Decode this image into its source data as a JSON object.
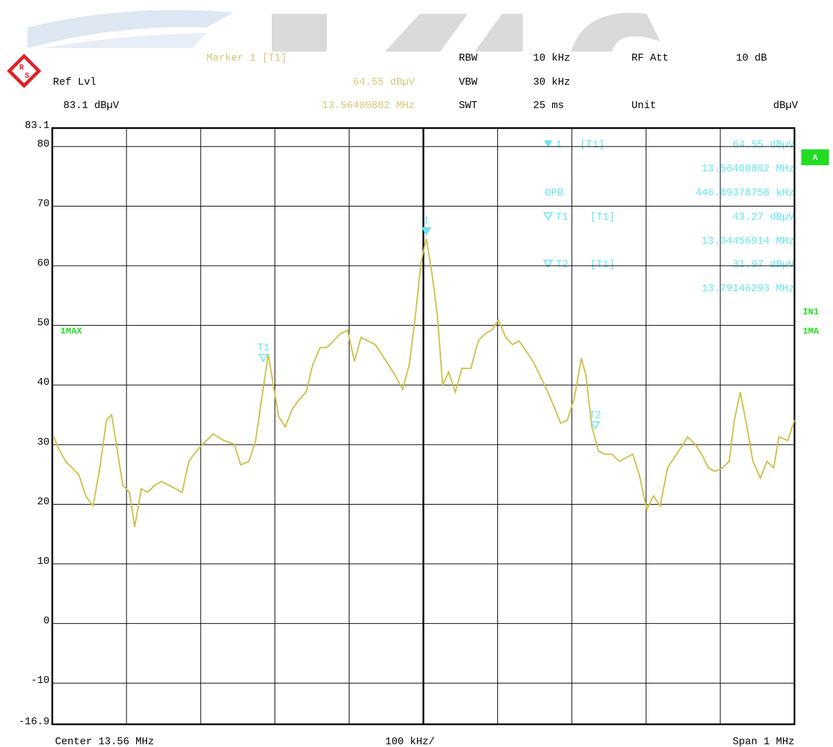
{
  "chart_data": {
    "type": "line",
    "logo": {
      "left": "R",
      "right": "S"
    },
    "ref_level": {
      "label": "Ref Lvl",
      "value": "83.1 dBµV"
    },
    "marker_header": {
      "title": "Marker 1 [T1]",
      "level": "64.55 dBµV",
      "frequency": "13.56400802 MHz"
    },
    "settings": [
      {
        "label": "RBW",
        "value": "10 kHz"
      },
      {
        "label": "VBW",
        "value": "30 kHz"
      },
      {
        "label": "SWT",
        "value": "25 ms"
      },
      {
        "label": "RF Att",
        "value": "10 dB"
      },
      {
        "label": "Unit",
        "value": "dBµV"
      }
    ],
    "marker_table": {
      "m1": {
        "name": "1",
        "trace": "[T1]",
        "level": "64.55 dBµV",
        "frequency": "13.56400802 MHz"
      },
      "opb": {
        "label": "OPB",
        "value": "446.89378758 kHz"
      },
      "t1": {
        "name": "T1",
        "trace": "[T1]",
        "level": "43.27 dBµV",
        "frequency": "13.34456914 MHz"
      },
      "t2": {
        "name": "T2",
        "trace": "[T1]",
        "level": "31.97 dBµV",
        "frequency": "13.79146293 MHz"
      }
    },
    "side_labels": {
      "trace_mode": "A",
      "input": "IN1",
      "trace_right": "1MA"
    },
    "x_labels": {
      "center": "Center 13.56 MHz",
      "per_div": "100 kHz/",
      "span": "Span 1 MHz"
    },
    "xlim": [
      13.06,
      14.06
    ],
    "xticks": [
      13.06,
      13.16,
      13.26,
      13.36,
      13.46,
      13.56,
      13.66,
      13.76,
      13.86,
      13.96,
      14.06
    ],
    "ylim": [
      -16.9,
      83.1
    ],
    "yticks": [
      83.1,
      80,
      70,
      60,
      50,
      40,
      30,
      20,
      10,
      0,
      -10,
      -16.9
    ],
    "grid": true,
    "markers": [
      {
        "label": "1",
        "x": 13.56400802,
        "y": 64.55,
        "filled": true
      },
      {
        "label": "T1",
        "x": 13.34456914,
        "y": 43.27,
        "filled": false
      },
      {
        "label": "T2",
        "x": 13.79146293,
        "y": 31.97,
        "filled": false
      }
    ],
    "x": [
      13.062,
      13.068,
      13.078,
      13.087,
      13.096,
      13.105,
      13.115,
      13.124,
      13.133,
      13.14,
      13.147,
      13.155,
      13.164,
      13.171,
      13.18,
      13.189,
      13.198,
      13.207,
      13.217,
      13.226,
      13.235,
      13.244,
      13.254,
      13.263,
      13.277,
      13.291,
      13.305,
      13.314,
      13.325,
      13.334,
      13.342,
      13.351,
      13.358,
      13.365,
      13.374,
      13.383,
      13.393,
      13.402,
      13.411,
      13.421,
      13.43,
      13.439,
      13.448,
      13.458,
      13.467,
      13.476,
      13.485,
      13.495,
      13.504,
      13.513,
      13.522,
      13.532,
      13.541,
      13.548,
      13.557,
      13.564,
      13.572,
      13.579,
      13.586,
      13.594,
      13.603,
      13.612,
      13.624,
      13.634,
      13.643,
      13.652,
      13.661,
      13.671,
      13.68,
      13.689,
      13.699,
      13.708,
      13.717,
      13.726,
      13.736,
      13.745,
      13.754,
      13.763,
      13.773,
      13.779,
      13.787,
      13.796,
      13.805,
      13.814,
      13.824,
      13.833,
      13.842,
      13.851,
      13.861,
      13.87,
      13.879,
      13.889,
      13.898,
      13.907,
      13.916,
      13.926,
      13.935,
      13.944,
      13.953,
      13.963,
      13.972,
      13.979,
      13.987,
      13.995,
      14.004,
      14.014,
      14.023,
      14.032,
      14.039,
      14.051,
      14.06
    ],
    "series": [
      {
        "name": "1MAX",
        "color": "#cbc24a",
        "values": [
          31.3,
          29.5,
          27.2,
          26.1,
          24.9,
          21.4,
          19.7,
          26.1,
          34.1,
          35,
          29.5,
          23.2,
          22,
          16.2,
          22.6,
          22,
          23.2,
          23.8,
          23.2,
          22.6,
          22,
          27.2,
          28.9,
          30.1,
          31.8,
          30.7,
          30.1,
          26.6,
          27.2,
          30.7,
          37.6,
          45.1,
          39.9,
          34.7,
          33,
          35.9,
          37.6,
          38.8,
          43.4,
          46.3,
          46.3,
          47.4,
          48.6,
          49.2,
          44,
          48,
          47.4,
          46.8,
          45.1,
          43.4,
          41.6,
          39.3,
          43.4,
          50.3,
          60.7,
          64.55,
          58.4,
          51.5,
          39.9,
          42.2,
          38.8,
          42.8,
          42.8,
          47.4,
          48.6,
          49.2,
          50.9,
          48,
          46.8,
          47.4,
          45.6,
          43.9,
          41.6,
          39.3,
          36.4,
          33.6,
          34.1,
          37.6,
          44.5,
          41.6,
          33,
          28.9,
          28.4,
          28.4,
          27.2,
          27.8,
          28.4,
          24.9,
          19.1,
          21.4,
          19.7,
          26.1,
          27.8,
          29.5,
          31.3,
          30.1,
          28.4,
          26.1,
          25.5,
          26.1,
          27.2,
          34.1,
          38.8,
          33.6,
          27.2,
          24.4,
          27.2,
          26.1,
          31.3,
          30.7,
          34.1
        ]
      }
    ]
  }
}
